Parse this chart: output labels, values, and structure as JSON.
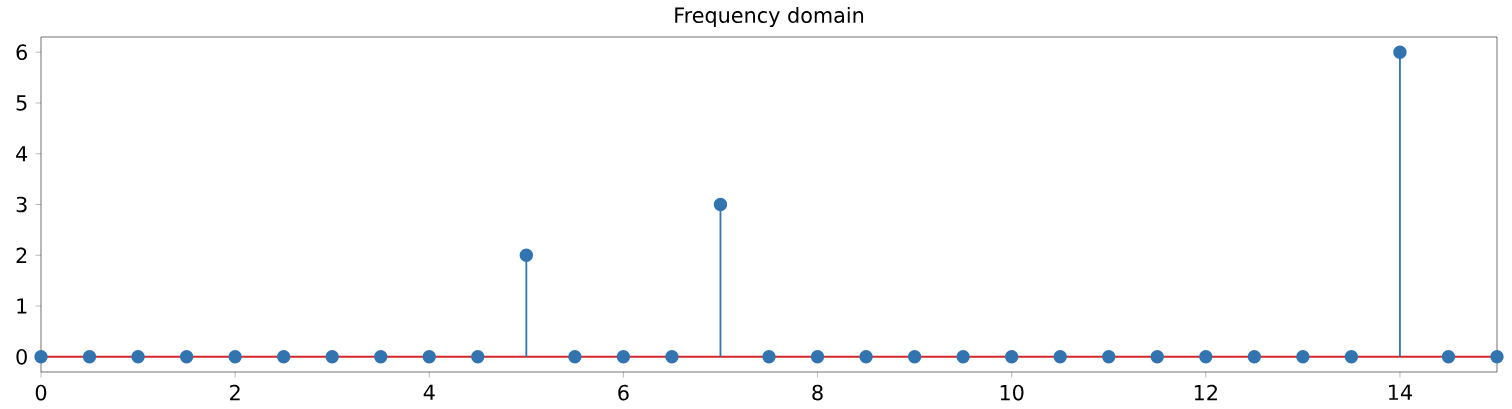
{
  "chart_data": {
    "type": "lollipop",
    "title": "Frequency domain",
    "x": [
      0,
      0.5,
      1,
      1.5,
      2,
      2.5,
      3,
      3.5,
      4,
      4.5,
      5,
      5.5,
      6,
      6.5,
      7,
      7.5,
      8,
      8.5,
      9,
      9.5,
      10,
      10.5,
      11,
      11.5,
      12,
      12.5,
      13,
      13.5,
      14,
      14.5,
      15
    ],
    "values": [
      0,
      0,
      0,
      0,
      0,
      0,
      0,
      0,
      0,
      0,
      2,
      0,
      0,
      0,
      3,
      0,
      0,
      0,
      0,
      0,
      0,
      0,
      0,
      0,
      0,
      0,
      0,
      0,
      6,
      0,
      0
    ],
    "color": "#3274b0",
    "marker": "circle",
    "xlim": [
      0,
      15
    ],
    "ylim": [
      -0.3,
      6.3
    ],
    "xticks": [
      0,
      2,
      4,
      6,
      8,
      10,
      12,
      14
    ],
    "yticks": [
      0,
      1,
      2,
      3,
      4,
      5,
      6
    ],
    "ref_lines": [
      {
        "axis": "y",
        "value": 0,
        "color": "#d62728"
      }
    ],
    "grid": false
  }
}
